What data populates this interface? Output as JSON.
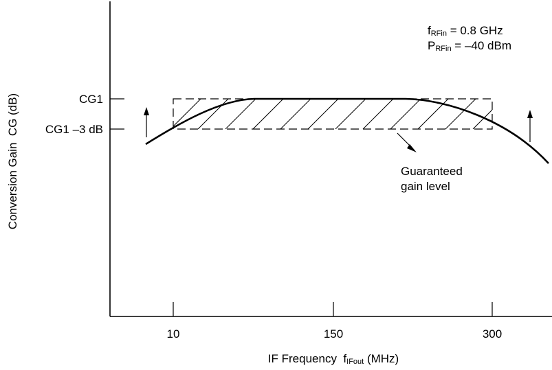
{
  "chart_data": {
    "type": "line",
    "xlabel": {
      "prefix": "IF Frequency  ",
      "symbol": "f",
      "subscript": "IFout",
      "suffix": " (MHz)"
    },
    "ylabel": "Conversion Gain  CG (dB)",
    "x_ticks": [
      "10",
      "150",
      "300"
    ],
    "y_ticks": [
      "CG1",
      "CG1 –3 dB"
    ],
    "conditions": [
      {
        "symbol": "f",
        "subscript": "RFin",
        "value": " = 0.8 GHz"
      },
      {
        "symbol": "P",
        "subscript": "RFin",
        "value": " = –40 dBm"
      }
    ],
    "guaranteed_region": {
      "label_line1": "Guaranteed",
      "label_line2": "gain level",
      "x_range": [
        "10",
        "300"
      ],
      "y_range": [
        "CG1 –3 dB",
        "CG1"
      ]
    },
    "grid": false,
    "legend": "none",
    "colors": {
      "line": "#000000",
      "background": "#ffffff"
    }
  }
}
